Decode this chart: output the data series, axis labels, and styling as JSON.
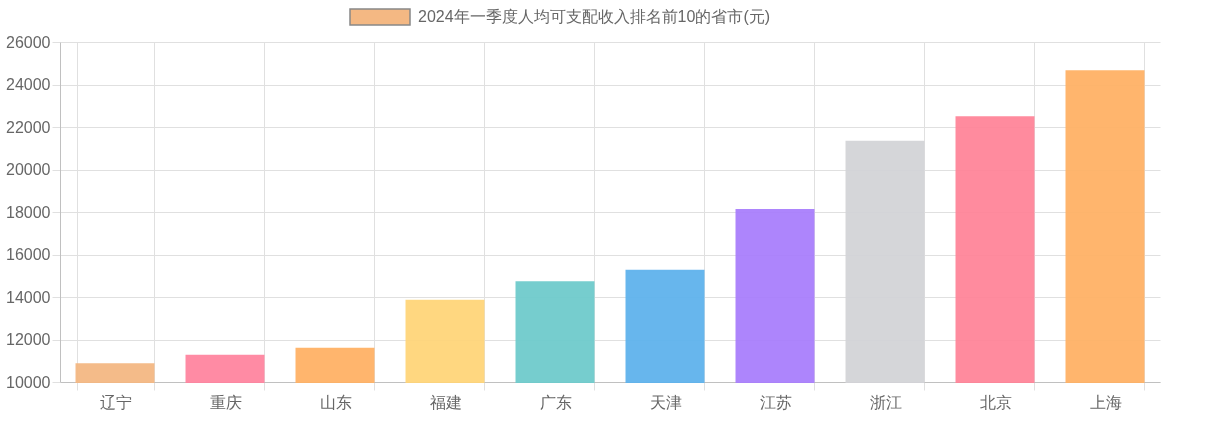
{
  "chart_data": {
    "type": "bar",
    "categories": [
      "辽宁",
      "重庆",
      "山东",
      "福建",
      "广东",
      "天津",
      "江苏",
      "浙江",
      "北京",
      "上海"
    ],
    "series": [
      {
        "name": "2024年一季度人均可支配收入排名前10的省市(元)",
        "values": [
          10830,
          11240,
          11560,
          13820,
          14690,
          15240,
          18090,
          21310,
          22460,
          24620
        ],
        "colors": [
          "#f4b883",
          "#ff85a0",
          "#ffb266",
          "#ffd57a",
          "#6fcbcc",
          "#5fb3ed",
          "#a97ffc",
          "#d3d4d8",
          "#ff8599",
          "#ffb266"
        ]
      }
    ],
    "ylim": [
      10000,
      26000
    ],
    "yticks": [
      10000,
      12000,
      14000,
      16000,
      18000,
      20000,
      22000,
      24000,
      26000
    ],
    "grid": true,
    "legend": "top"
  }
}
